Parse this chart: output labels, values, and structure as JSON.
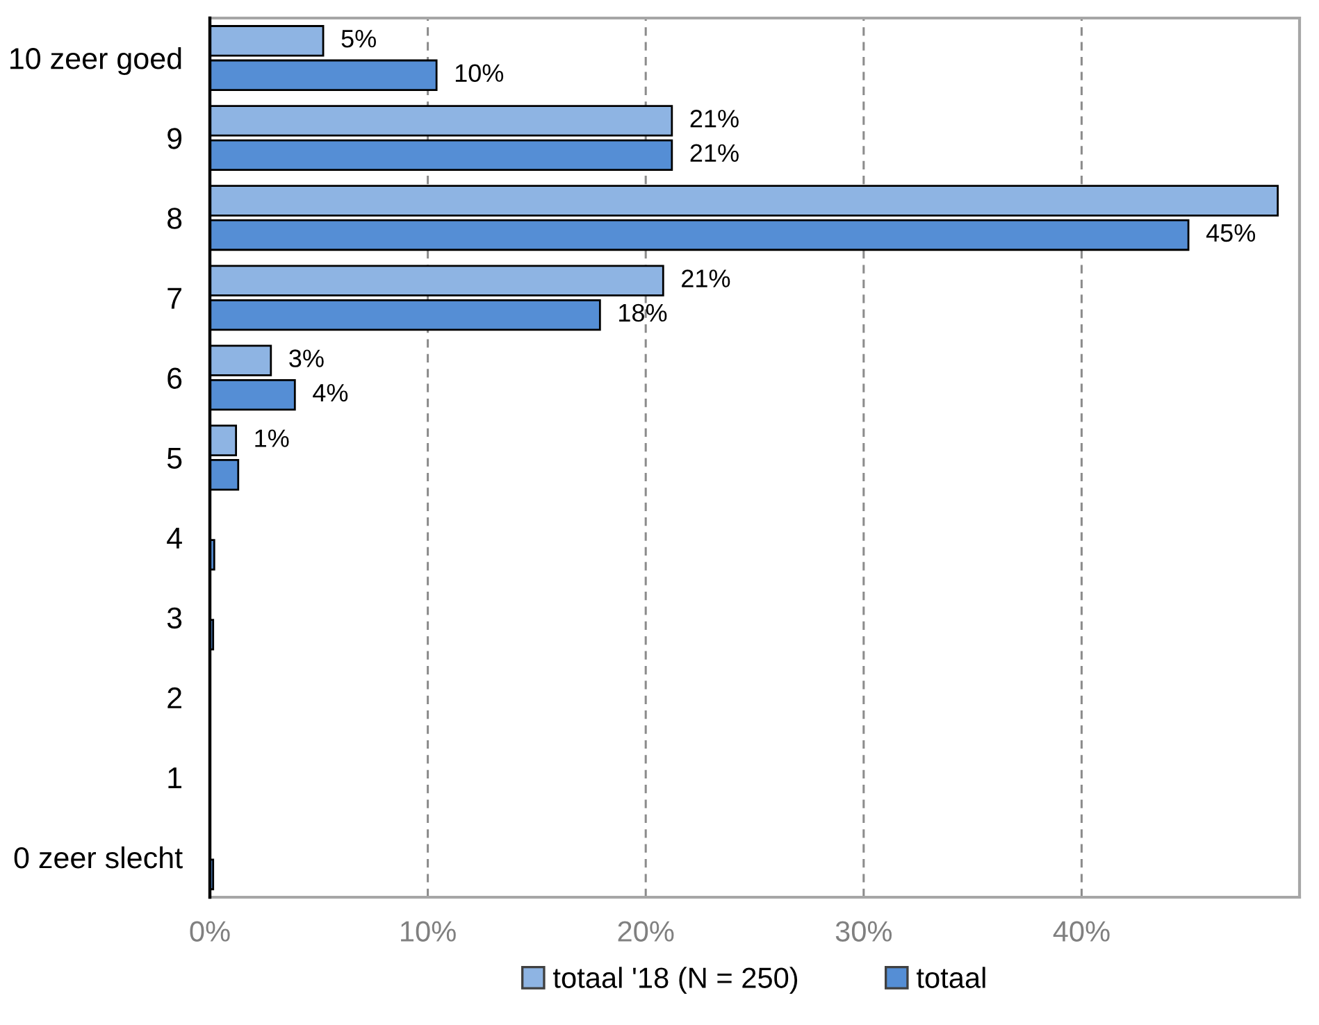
{
  "chart_data": {
    "type": "bar",
    "orientation": "horizontal",
    "categories": [
      "10 zeer goed",
      "9",
      "8",
      "7",
      "6",
      "5",
      "4",
      "3",
      "2",
      "1",
      "0 zeer slecht"
    ],
    "series": [
      {
        "name": "totaal '18 (N = 250)",
        "color": "#8eb4e3",
        "values": [
          5.2,
          21.2,
          49,
          20.8,
          2.8,
          1.2,
          null,
          null,
          null,
          null,
          null
        ],
        "value_labels": [
          "5%",
          "21%",
          null,
          "21%",
          "3%",
          "1%",
          null,
          null,
          null,
          null,
          null
        ]
      },
      {
        "name": "totaal",
        "color": "#558ed5",
        "values": [
          10.4,
          21.2,
          44.9,
          17.9,
          3.9,
          1.3,
          0.2,
          0.15,
          null,
          null,
          0.15
        ],
        "value_labels": [
          "10%",
          "21%",
          "45%",
          "18%",
          "4%",
          null,
          null,
          null,
          null,
          null,
          null
        ]
      }
    ],
    "xlim": [
      0,
      50
    ],
    "xticks": [
      {
        "value": 0,
        "label": "0%"
      },
      {
        "value": 10,
        "label": "10%"
      },
      {
        "value": 20,
        "label": "20%"
      },
      {
        "value": 30,
        "label": "30%"
      },
      {
        "value": 40,
        "label": "40%"
      }
    ],
    "grid": "x",
    "legend": "bottom"
  }
}
